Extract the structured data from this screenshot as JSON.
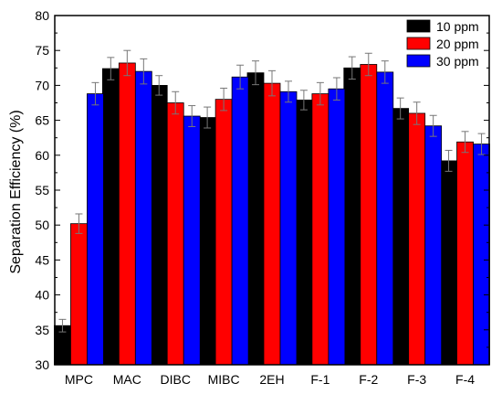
{
  "chart_data": {
    "type": "bar",
    "title": "",
    "xlabel": "",
    "ylabel": "Separation Efficiency (%)",
    "ylim": [
      30,
      80
    ],
    "yticks": [
      30,
      35,
      40,
      45,
      50,
      55,
      60,
      65,
      70,
      75,
      80
    ],
    "legend_position": "top-right",
    "grid": false,
    "categories": [
      "MPC",
      "MAC",
      "DIBC",
      "MIBC",
      "2EH",
      "F-1",
      "F-2",
      "F-3",
      "F-4"
    ],
    "series": [
      {
        "name": "10 ppm",
        "color": "#000000",
        "values": [
          35.6,
          72.4,
          70.0,
          65.4,
          71.8,
          67.9,
          72.5,
          66.7,
          59.2
        ],
        "errors": [
          0.9,
          1.6,
          1.4,
          1.5,
          1.7,
          1.4,
          1.6,
          1.5,
          1.5
        ]
      },
      {
        "name": "20 ppm",
        "color": "#ff0000",
        "values": [
          50.2,
          73.2,
          67.5,
          68.0,
          70.3,
          68.8,
          73.0,
          66.0,
          61.9
        ],
        "errors": [
          1.4,
          1.8,
          1.6,
          1.6,
          1.8,
          1.6,
          1.6,
          1.6,
          1.5
        ]
      },
      {
        "name": "30 ppm",
        "color": "#0000ff",
        "values": [
          68.8,
          72.0,
          65.6,
          71.2,
          69.1,
          69.5,
          71.9,
          64.2,
          61.6
        ],
        "errors": [
          1.6,
          1.8,
          1.5,
          1.7,
          1.5,
          1.6,
          1.6,
          1.5,
          1.5
        ]
      }
    ]
  }
}
